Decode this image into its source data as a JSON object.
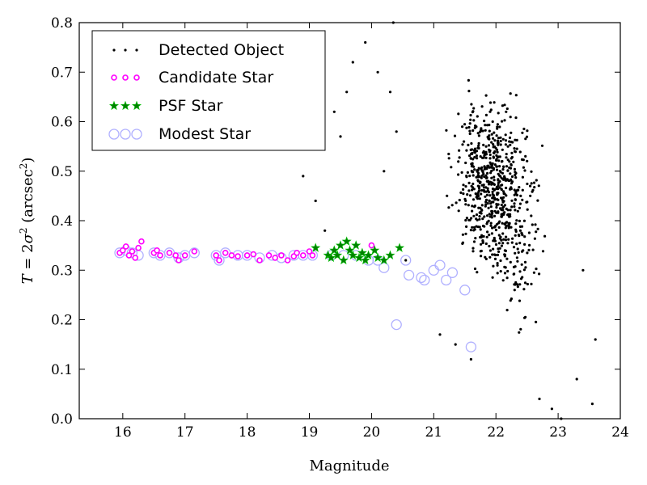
{
  "chart_data": {
    "type": "scatter",
    "title": "",
    "xlabel": "Magnitude",
    "ylabel": "T = 2σ² (arcsec²)",
    "ylabel_parts": [
      "T",
      " = 2",
      "σ",
      "2",
      " (arcsec",
      "2",
      ")"
    ],
    "xlim": [
      15.3,
      24
    ],
    "ylim": [
      0,
      0.8
    ],
    "x_ticks": [
      "16",
      "17",
      "18",
      "19",
      "20",
      "21",
      "22",
      "23",
      "24"
    ],
    "y_ticks": [
      "0.0",
      "0.1",
      "0.2",
      "0.3",
      "0.4",
      "0.5",
      "0.6",
      "0.7",
      "0.8"
    ],
    "grid": false,
    "legend_position": "top-left",
    "colors": {
      "detected": "#000000",
      "candidate": "#ff00ff",
      "psf": "#008000",
      "modest": "#b0b0ff"
    },
    "series": [
      {
        "name": "Detected Object",
        "marker": "dot",
        "generated": true,
        "note": "",
        "points": [
          [
            18.9,
            0.49
          ],
          [
            19.1,
            0.44
          ],
          [
            19.25,
            0.38
          ],
          [
            19.4,
            0.62
          ],
          [
            19.5,
            0.57
          ],
          [
            19.6,
            0.66
          ],
          [
            19.7,
            0.72
          ],
          [
            19.9,
            0.76
          ],
          [
            20.1,
            0.7
          ],
          [
            20.3,
            0.66
          ],
          [
            20.35,
            0.8
          ],
          [
            20.2,
            0.5
          ],
          [
            20.4,
            0.58
          ],
          [
            20.55,
            0.32
          ],
          [
            21.1,
            0.17
          ],
          [
            21.35,
            0.15
          ],
          [
            21.6,
            0.12
          ],
          [
            22.3,
            0.26
          ],
          [
            22.7,
            0.04
          ],
          [
            22.9,
            0.02
          ],
          [
            23.05,
            0.0
          ],
          [
            23.4,
            0.3
          ],
          [
            23.6,
            0.16
          ],
          [
            23.55,
            0.03
          ],
          [
            23.3,
            0.08
          ]
        ]
      },
      {
        "name": "Candidate Star",
        "marker": "small-circle",
        "points": [
          [
            15.95,
            0.335
          ],
          [
            16.0,
            0.34
          ],
          [
            16.05,
            0.348
          ],
          [
            16.1,
            0.33
          ],
          [
            16.15,
            0.338
          ],
          [
            16.2,
            0.325
          ],
          [
            16.25,
            0.345
          ],
          [
            16.3,
            0.358
          ],
          [
            16.5,
            0.335
          ],
          [
            16.55,
            0.34
          ],
          [
            16.6,
            0.33
          ],
          [
            16.75,
            0.335
          ],
          [
            16.85,
            0.33
          ],
          [
            16.9,
            0.32
          ],
          [
            17.0,
            0.33
          ],
          [
            17.15,
            0.338
          ],
          [
            17.5,
            0.33
          ],
          [
            17.55,
            0.32
          ],
          [
            17.65,
            0.335
          ],
          [
            17.75,
            0.33
          ],
          [
            17.85,
            0.328
          ],
          [
            18.0,
            0.33
          ],
          [
            18.1,
            0.332
          ],
          [
            18.2,
            0.32
          ],
          [
            18.35,
            0.33
          ],
          [
            18.45,
            0.325
          ],
          [
            18.55,
            0.33
          ],
          [
            18.65,
            0.32
          ],
          [
            18.75,
            0.328
          ],
          [
            18.8,
            0.335
          ],
          [
            18.9,
            0.33
          ],
          [
            19.0,
            0.338
          ],
          [
            19.05,
            0.33
          ],
          [
            20.0,
            0.35
          ]
        ]
      },
      {
        "name": "PSF Star",
        "marker": "star",
        "points": [
          [
            19.1,
            0.345
          ],
          [
            19.3,
            0.33
          ],
          [
            19.35,
            0.325
          ],
          [
            19.4,
            0.34
          ],
          [
            19.45,
            0.33
          ],
          [
            19.5,
            0.35
          ],
          [
            19.55,
            0.32
          ],
          [
            19.6,
            0.358
          ],
          [
            19.65,
            0.34
          ],
          [
            19.7,
            0.33
          ],
          [
            19.75,
            0.35
          ],
          [
            19.8,
            0.325
          ],
          [
            19.85,
            0.335
          ],
          [
            19.9,
            0.32
          ],
          [
            19.95,
            0.33
          ],
          [
            20.05,
            0.34
          ],
          [
            20.1,
            0.325
          ],
          [
            20.2,
            0.32
          ],
          [
            20.3,
            0.33
          ],
          [
            20.45,
            0.345
          ]
        ]
      },
      {
        "name": "Modest Star",
        "marker": "open-circle",
        "points": [
          [
            15.95,
            0.335
          ],
          [
            16.05,
            0.34
          ],
          [
            16.15,
            0.335
          ],
          [
            16.25,
            0.33
          ],
          [
            16.5,
            0.335
          ],
          [
            16.6,
            0.33
          ],
          [
            16.75,
            0.335
          ],
          [
            16.9,
            0.325
          ],
          [
            17.0,
            0.33
          ],
          [
            17.15,
            0.335
          ],
          [
            17.5,
            0.33
          ],
          [
            17.55,
            0.32
          ],
          [
            17.65,
            0.335
          ],
          [
            17.85,
            0.33
          ],
          [
            18.0,
            0.33
          ],
          [
            18.2,
            0.325
          ],
          [
            18.4,
            0.33
          ],
          [
            18.55,
            0.325
          ],
          [
            18.75,
            0.33
          ],
          [
            18.9,
            0.33
          ],
          [
            19.05,
            0.33
          ],
          [
            19.35,
            0.33
          ],
          [
            19.55,
            0.33
          ],
          [
            19.75,
            0.33
          ],
          [
            19.95,
            0.32
          ],
          [
            20.1,
            0.32
          ],
          [
            20.2,
            0.305
          ],
          [
            20.55,
            0.32
          ],
          [
            20.6,
            0.29
          ],
          [
            20.8,
            0.285
          ],
          [
            20.85,
            0.28
          ],
          [
            21.0,
            0.3
          ],
          [
            21.1,
            0.31
          ],
          [
            21.2,
            0.28
          ],
          [
            21.3,
            0.295
          ],
          [
            21.5,
            0.26
          ],
          [
            20.4,
            0.19
          ],
          [
            21.6,
            0.145
          ]
        ]
      }
    ]
  }
}
